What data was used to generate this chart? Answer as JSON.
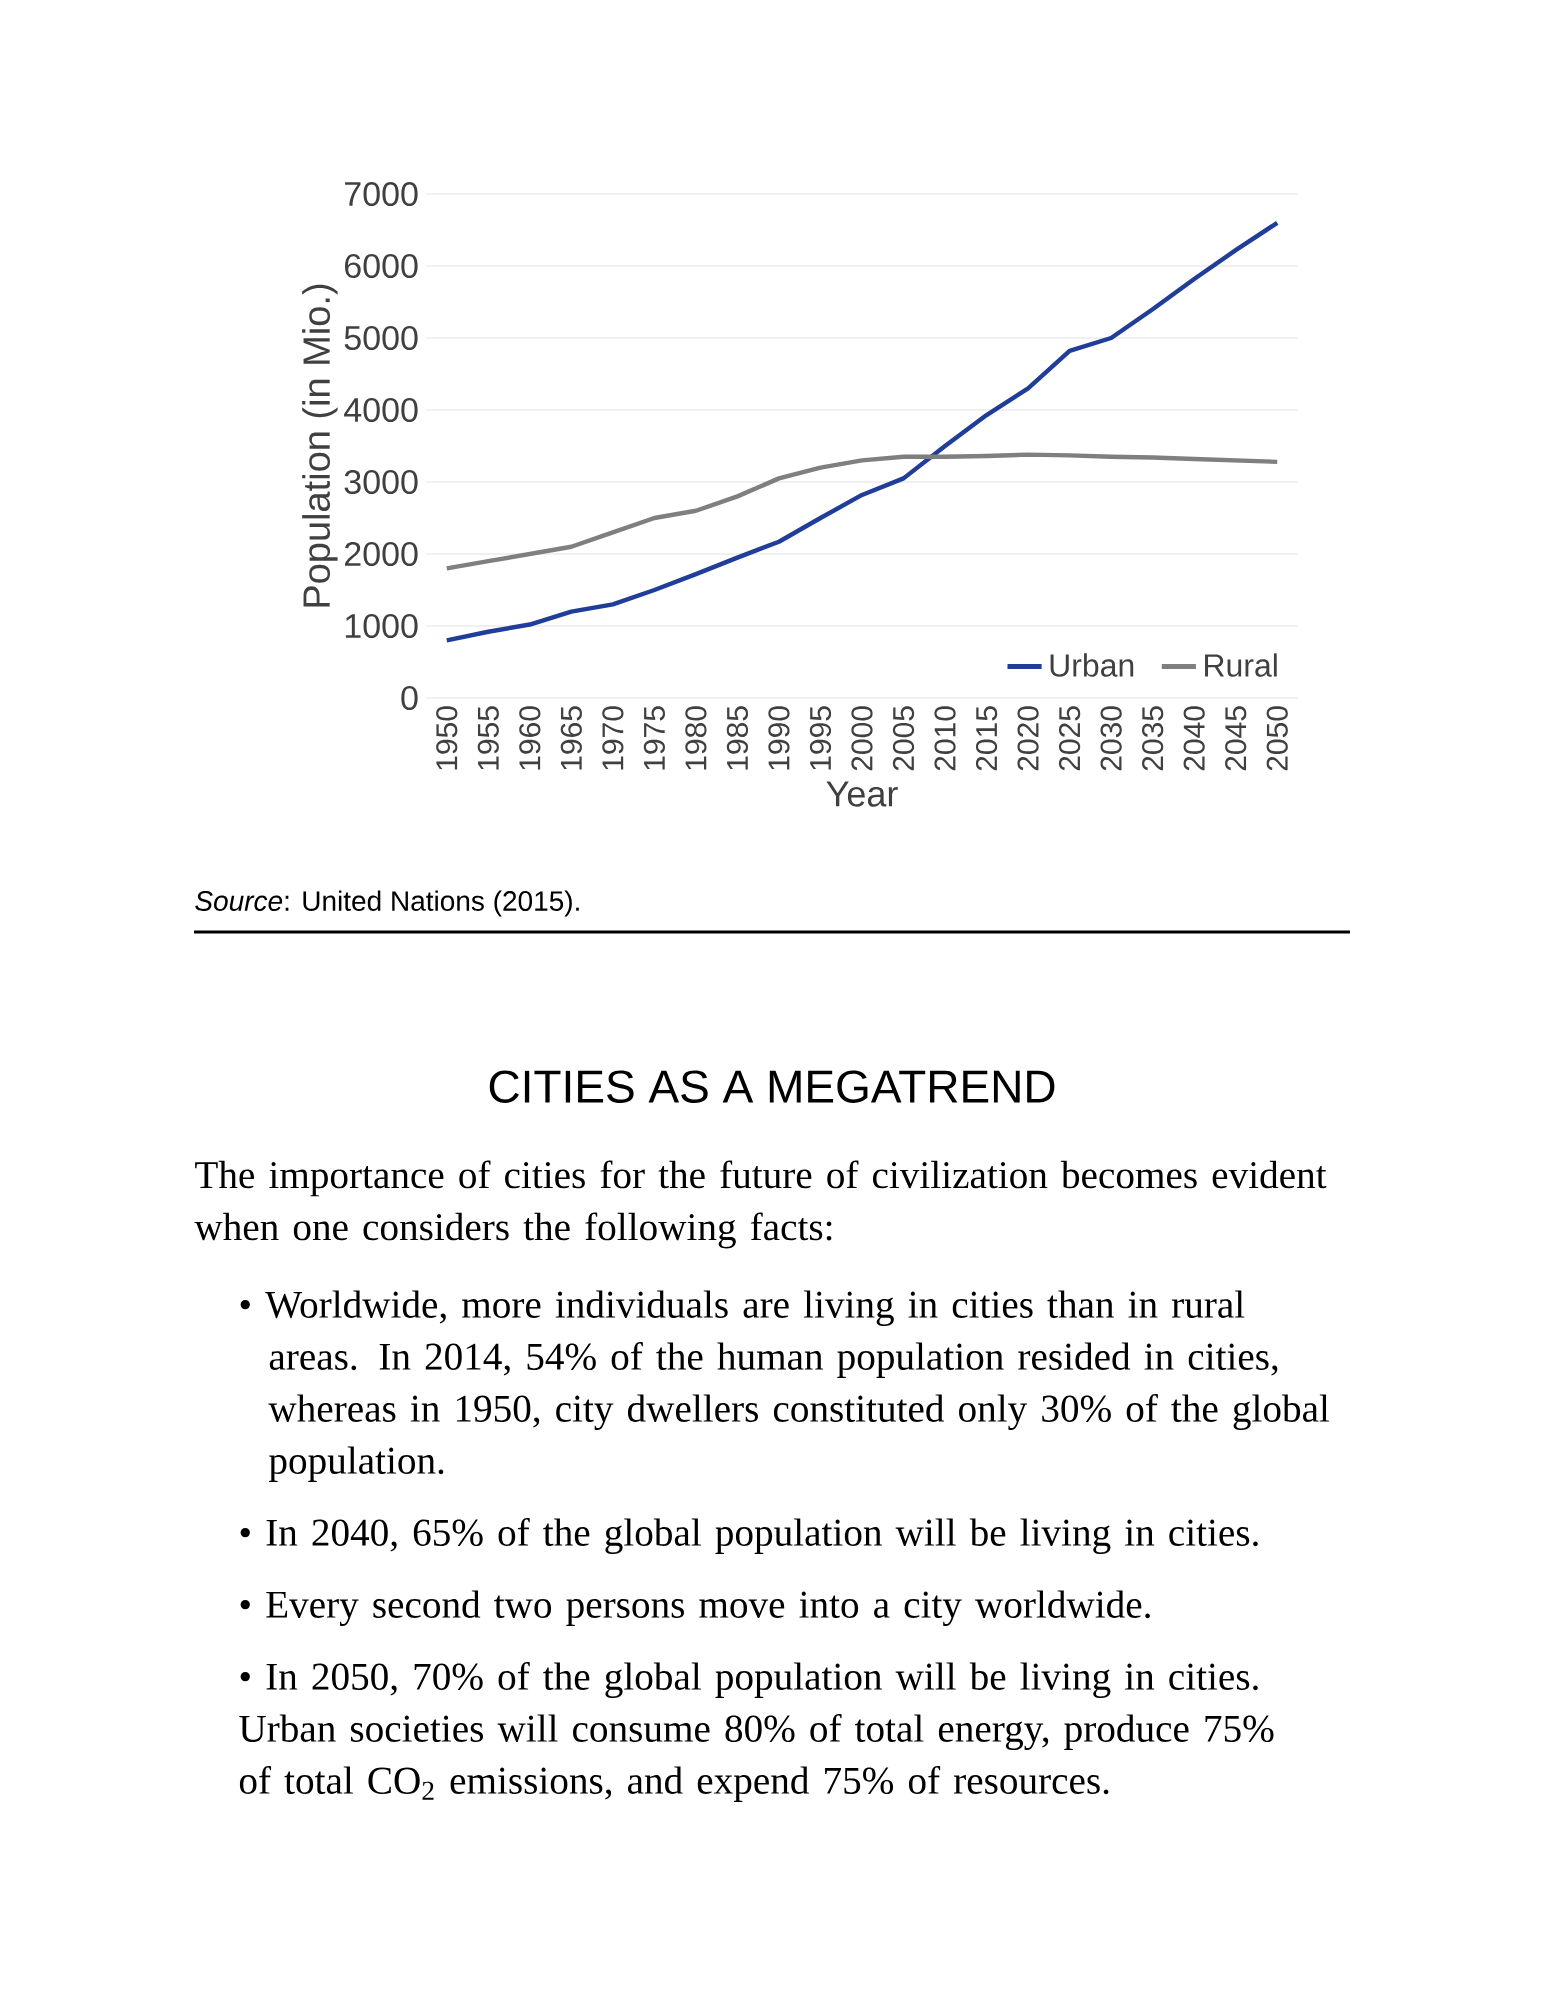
{
  "chart_data": {
    "type": "line",
    "xlabel": "Year",
    "ylabel": "Population (in Mio.)",
    "categories": [
      "1950",
      "1955",
      "1960",
      "1965",
      "1970",
      "1975",
      "1980",
      "1985",
      "1990",
      "1995",
      "2000",
      "2005",
      "2010",
      "2015",
      "2020",
      "2025",
      "2030",
      "2035",
      "2040",
      "2045",
      "2050"
    ],
    "series": [
      {
        "name": "Urban",
        "color": "#1f3d99",
        "values": [
          800,
          920,
          1020,
          1200,
          1300,
          1500,
          1720,
          1950,
          2170,
          2500,
          2820,
          3050,
          3500,
          3930,
          4300,
          4820,
          5000,
          5400,
          5820,
          6220,
          6600
        ]
      },
      {
        "name": "Rural",
        "color": "#7f7f7f",
        "values": [
          1800,
          1900,
          2000,
          2100,
          2300,
          2500,
          2600,
          2800,
          3050,
          3200,
          3300,
          3350,
          3350,
          3360,
          3380,
          3370,
          3350,
          3340,
          3320,
          3300,
          3280
        ]
      }
    ],
    "ylim": [
      0,
      7000
    ],
    "yticks": [
      0,
      1000,
      2000,
      3000,
      4000,
      5000,
      6000,
      7000
    ],
    "grid": "y",
    "legend": "bottom right",
    "annotations": [
      "*Source*: United Nations (2015).",
      "CITIES AS A MEGATREND",
      "The importance of cities for the future of civilization becomes evident when one considers the following facts:",
      "• Worldwide, more individuals are living in cities than in rural areas. In 2014, 54% of the human population resided in cities, whereas in 1950, city dwellers constituted only 30% of the global population.",
      "• In 2040, 65% of the global population will be living in cities.",
      "• Every second two persons move into a city worldwide.",
      "• In 2050, 70% of the global population will be living in cities. Urban societies will consume 80% of total energy, produce 75% of total CO$_{2}$ emissions, and expend 75% of resources."
    ]
  }
}
